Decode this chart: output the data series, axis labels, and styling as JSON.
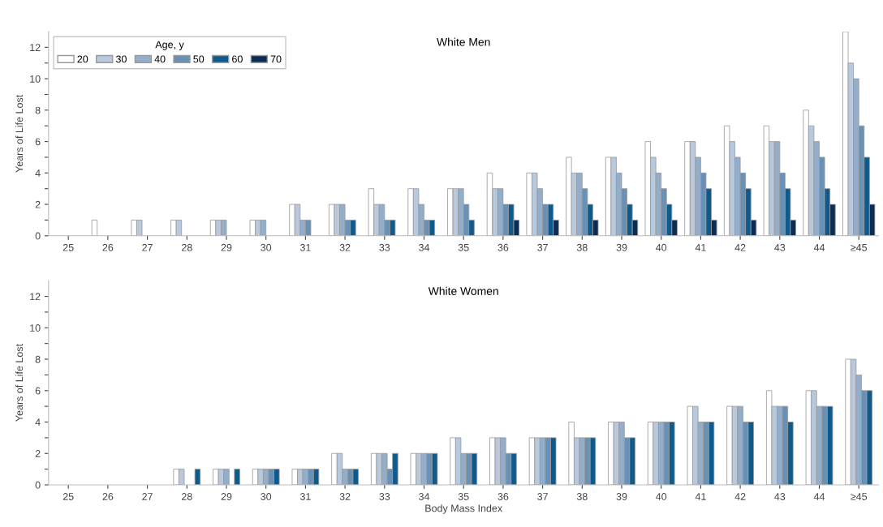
{
  "chart_data": [
    {
      "type": "bar",
      "title": "White Men",
      "ylabel": "Years of Life Lost",
      "legend_title": "Age, y",
      "legend": "top left",
      "grid": false,
      "categories": [
        "25",
        "26",
        "27",
        "28",
        "29",
        "30",
        "31",
        "32",
        "33",
        "34",
        "35",
        "36",
        "37",
        "38",
        "39",
        "40",
        "41",
        "42",
        "43",
        "44",
        "≥45"
      ],
      "ylim": [
        0,
        13
      ],
      "yticks": [
        0,
        {
          "value": 1,
          "label": null
        },
        2,
        {
          "value": 3,
          "label": null
        },
        4,
        {
          "value": 5,
          "label": null
        },
        6,
        {
          "value": 7,
          "label": null
        },
        8,
        {
          "value": 9,
          "label": null
        },
        10,
        {
          "value": 11,
          "label": null
        },
        12
      ],
      "series": [
        {
          "name": "20",
          "color": "#ffffff",
          "values": [
            0,
            1,
            1,
            1,
            1,
            1,
            2,
            2,
            3,
            3,
            3,
            4,
            4,
            5,
            5,
            6,
            6,
            7,
            7,
            8,
            13
          ]
        },
        {
          "name": "30",
          "color": "#b8c9de",
          "values": [
            0,
            0,
            1,
            1,
            1,
            1,
            2,
            2,
            2,
            3,
            3,
            3,
            4,
            4,
            5,
            5,
            6,
            6,
            6,
            7,
            11
          ]
        },
        {
          "name": "40",
          "color": "#93aecb",
          "values": [
            0,
            0,
            0,
            0,
            1,
            1,
            1,
            2,
            2,
            2,
            3,
            3,
            3,
            4,
            4,
            4,
            5,
            5,
            6,
            6,
            10
          ]
        },
        {
          "name": "50",
          "color": "#6990b5",
          "values": [
            0,
            0,
            0,
            0,
            0,
            0,
            1,
            1,
            1,
            1,
            2,
            2,
            2,
            3,
            3,
            3,
            4,
            4,
            4,
            5,
            7
          ]
        },
        {
          "name": "60",
          "color": "#0f5a8c",
          "values": [
            0,
            0,
            0,
            0,
            0,
            0,
            0,
            1,
            1,
            1,
            1,
            2,
            2,
            2,
            2,
            2,
            3,
            3,
            3,
            3,
            5
          ]
        },
        {
          "name": "70",
          "color": "#0c2c56",
          "values": [
            0,
            0,
            0,
            0,
            0,
            0,
            0,
            0,
            0,
            0,
            0,
            1,
            1,
            1,
            1,
            1,
            1,
            1,
            1,
            2,
            2
          ]
        }
      ]
    },
    {
      "type": "bar",
      "title": "White Women",
      "ylabel": "Years of Life Lost",
      "xlabel": "Body Mass Index",
      "grid": false,
      "categories": [
        "25",
        "26",
        "27",
        "28",
        "29",
        "30",
        "31",
        "32",
        "33",
        "34",
        "35",
        "36",
        "37",
        "38",
        "39",
        "40",
        "41",
        "42",
        "43",
        "44",
        "≥45"
      ],
      "ylim": [
        0,
        13
      ],
      "yticks": [
        0,
        {
          "value": 1,
          "label": null
        },
        2,
        {
          "value": 3,
          "label": null
        },
        4,
        {
          "value": 5,
          "label": null
        },
        6,
        {
          "value": 7,
          "label": null
        },
        8,
        {
          "value": 9,
          "label": null
        },
        10,
        {
          "value": 11,
          "label": null
        },
        12
      ],
      "series": [
        {
          "color": "#ffffff",
          "values": [
            0,
            0,
            0,
            1,
            1,
            1,
            1,
            2,
            2,
            2,
            3,
            3,
            3,
            4,
            4,
            4,
            5,
            5,
            6,
            6,
            8
          ]
        },
        {
          "color": "#b8c9de",
          "values": [
            0,
            0,
            0,
            1,
            1,
            1,
            1,
            2,
            2,
            2,
            3,
            3,
            3,
            3,
            4,
            4,
            5,
            5,
            5,
            6,
            8
          ]
        },
        {
          "color": "#93aecb",
          "values": [
            0,
            0,
            0,
            0,
            1,
            1,
            1,
            1,
            2,
            2,
            2,
            3,
            3,
            3,
            4,
            4,
            4,
            5,
            5,
            5,
            7
          ]
        },
        {
          "color": "#6990b5",
          "values": [
            0,
            0,
            0,
            0,
            0,
            1,
            1,
            1,
            1,
            2,
            2,
            2,
            3,
            3,
            3,
            4,
            4,
            4,
            5,
            5,
            6
          ]
        },
        {
          "color": "#0f5a8c",
          "values": [
            0,
            0,
            0,
            1,
            1,
            1,
            1,
            1,
            2,
            2,
            2,
            2,
            3,
            3,
            3,
            4,
            4,
            4,
            4,
            5,
            6
          ]
        }
      ]
    }
  ]
}
